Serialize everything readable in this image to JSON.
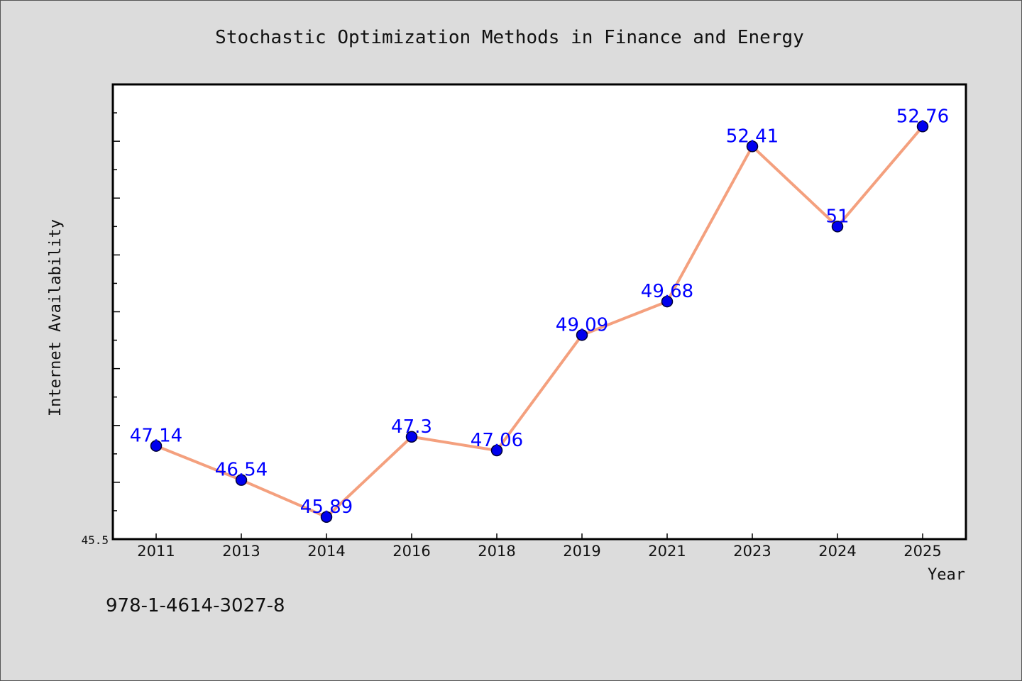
{
  "chart_data": {
    "type": "line",
    "title": "Stochastic Optimization Methods in Finance and Energy",
    "xlabel": "Year",
    "ylabel": "Internet Availability",
    "categories": [
      "2011",
      "2013",
      "2014",
      "2016",
      "2018",
      "2019",
      "2021",
      "2023",
      "2024",
      "2025"
    ],
    "series": [
      {
        "values": [
          47.14,
          46.54,
          45.89,
          47.3,
          47.06,
          49.09,
          49.68,
          52.41,
          51,
          52.76
        ]
      }
    ],
    "data_labels": [
      "47.14",
      "46.54",
      "45.89",
      "47.3",
      "47.06",
      "49.09",
      "49.68",
      "52.41",
      "51",
      "52.76"
    ],
    "y_tick_label": "45.5",
    "ylim": [
      45.5,
      53.5
    ],
    "grid": false,
    "legend": "none",
    "colors": {
      "line": "#f4a07e",
      "marker": "#0000ee",
      "marker_edge": "#000033",
      "data_label": "#0000ff",
      "background": "#dcdcdc",
      "plot_background": "#ffffff"
    }
  },
  "footer": {
    "isbn": "978-1-4614-3027-8"
  }
}
